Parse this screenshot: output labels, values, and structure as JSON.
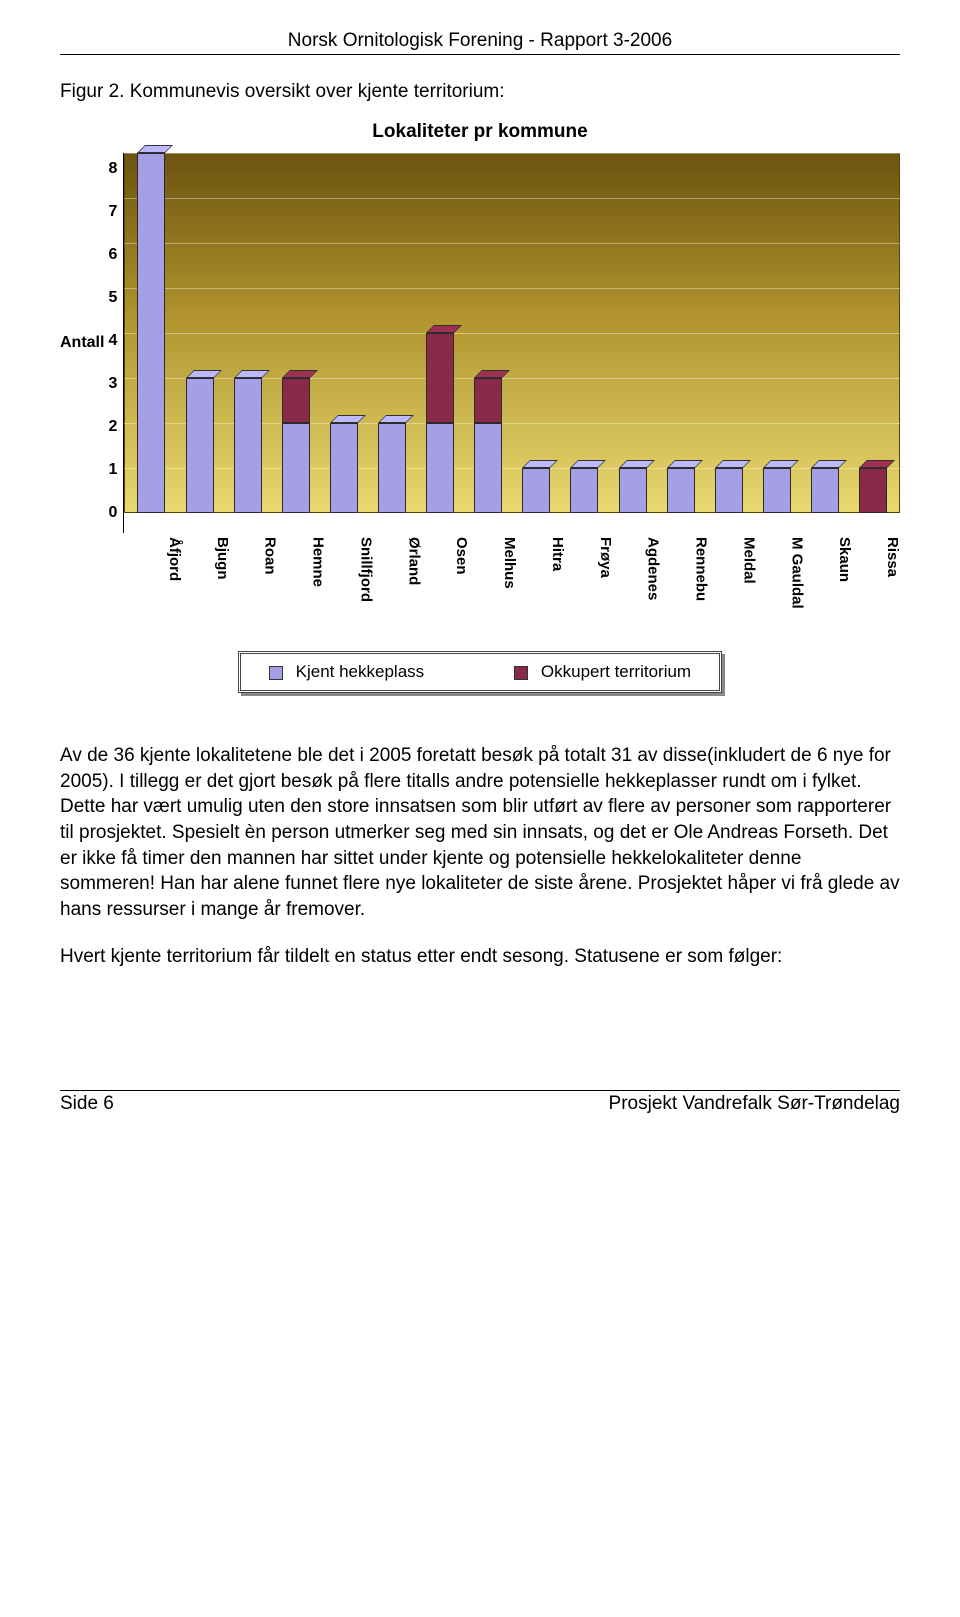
{
  "header": "Norsk Ornitologisk Forening  -  Rapport 3-2006",
  "figure_caption": "Figur 2. Kommunevis oversikt over kjente territorium:",
  "chart": {
    "type": "bar-stacked-3d",
    "title": "Lokaliteter pr kommune",
    "y_label": "Antall",
    "y_min": 0,
    "y_max": 8,
    "y_tick_step": 1,
    "y_ticks": [
      "8",
      "7",
      "6",
      "5",
      "4",
      "3",
      "2",
      "1",
      "0"
    ],
    "background_gradient_top": "#6c5310",
    "background_gradient_bottom": "#e9d96f",
    "series": [
      {
        "name": "Kjent hekkeplass",
        "color": "#a5a0e6"
      },
      {
        "name": "Okkupert territorium",
        "color": "#8a2a49"
      }
    ],
    "categories": [
      {
        "label": "Åfjord",
        "kjent": 8,
        "okkupert": 0
      },
      {
        "label": "Bjugn",
        "kjent": 3,
        "okkupert": 0
      },
      {
        "label": "Roan",
        "kjent": 3,
        "okkupert": 0
      },
      {
        "label": "Hemne",
        "kjent": 2,
        "okkupert": 1
      },
      {
        "label": "Snillfjord",
        "kjent": 2,
        "okkupert": 0
      },
      {
        "label": "Ørland",
        "kjent": 2,
        "okkupert": 0
      },
      {
        "label": "Osen",
        "kjent": 2,
        "okkupert": 2
      },
      {
        "label": "Melhus",
        "kjent": 2,
        "okkupert": 1
      },
      {
        "label": "Hitra",
        "kjent": 1,
        "okkupert": 0
      },
      {
        "label": "Frøya",
        "kjent": 1,
        "okkupert": 0
      },
      {
        "label": "Agdenes",
        "kjent": 1,
        "okkupert": 0
      },
      {
        "label": "Rennebu",
        "kjent": 1,
        "okkupert": 0
      },
      {
        "label": "Meldal",
        "kjent": 1,
        "okkupert": 0
      },
      {
        "label": "M Gauldal",
        "kjent": 1,
        "okkupert": 0
      },
      {
        "label": "Skaun",
        "kjent": 1,
        "okkupert": 0
      },
      {
        "label": "Rissa",
        "kjent": 0,
        "okkupert": 1
      }
    ]
  },
  "paragraph1": "Av de 36 kjente lokalitetene ble det i 2005 foretatt besøk på totalt 31 av disse(inkludert de 6 nye for 2005). I tillegg er det gjort besøk på flere titalls andre potensielle hekkeplasser rundt om i fylket. Dette har vært umulig uten den store innsatsen som blir utført av flere av personer som rapporterer til prosjektet. Spesielt èn person utmerker seg med sin innsats, og det er Ole Andreas Forseth. Det er ikke få timer den mannen har sittet under kjente og potensielle hekkelokaliteter denne sommeren! Han har alene funnet flere nye lokaliteter de siste årene. Prosjektet håper vi frå glede av hans ressurser i mange år fremover.",
  "paragraph2": "Hvert kjente territorium får tildelt en status etter endt sesong. Statusene er som følger:",
  "footer_left": "Side 6",
  "footer_right": "Prosjekt Vandrefalk Sør-Trøndelag"
}
